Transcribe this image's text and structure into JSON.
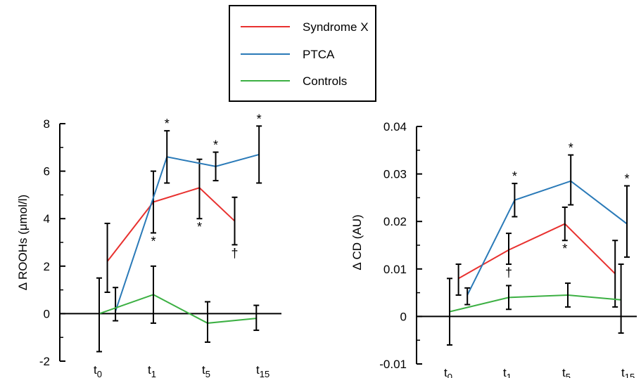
{
  "colors": {
    "syndrome_x": "#e8312f",
    "ptca": "#2a7ab8",
    "controls": "#3cb043",
    "axis": "#000000"
  },
  "legend": {
    "placement": "top-center",
    "entries": [
      {
        "label": "Syndrome X",
        "color_key": "syndrome_x"
      },
      {
        "label": "PTCA",
        "color_key": "ptca"
      },
      {
        "label": "Controls",
        "color_key": "controls"
      }
    ]
  },
  "chart_data": [
    {
      "type": "line",
      "ylabel": "Δ ROOHs (μmol/l)",
      "xlabel": "",
      "categories": [
        {
          "base": "t",
          "sub": "0"
        },
        {
          "base": "t",
          "sub": "1"
        },
        {
          "base": "t",
          "sub": "5"
        },
        {
          "base": "t",
          "sub": "15"
        }
      ],
      "ylim": [
        -2,
        8
      ],
      "yticks": [
        -2,
        0,
        2,
        4,
        6,
        8
      ],
      "ytick_labels": [
        "-2",
        "0",
        "2",
        "4",
        "6",
        "8"
      ],
      "grid": false,
      "series": [
        {
          "name": "Syndrome X",
          "color_key": "syndrome_x",
          "x": [
            0.15,
            1.0,
            1.85,
            2.5
          ],
          "values": [
            2.2,
            4.7,
            5.3,
            3.9
          ],
          "err": [
            [
              0.9,
              3.8
            ],
            [
              3.4,
              6.0
            ],
            [
              4.0,
              6.5
            ],
            [
              2.9,
              4.9
            ]
          ],
          "markers": [
            "",
            "*",
            "*",
            "†"
          ],
          "marker_pos": [
            "",
            "below",
            "below",
            "below"
          ]
        },
        {
          "name": "PTCA",
          "color_key": "ptca",
          "x": [
            0.3,
            1.25,
            2.15,
            2.95
          ],
          "values": [
            0.1,
            6.6,
            6.2,
            6.7
          ],
          "err": [
            [
              -0.3,
              1.1
            ],
            [
              5.5,
              7.7
            ],
            [
              5.6,
              6.8
            ],
            [
              5.5,
              7.9
            ]
          ],
          "markers": [
            "",
            "*",
            "*",
            "*"
          ],
          "marker_pos": [
            "",
            "above",
            "above",
            "above"
          ]
        },
        {
          "name": "Controls",
          "color_key": "controls",
          "x": [
            0.0,
            1.0,
            2.0,
            2.9
          ],
          "values": [
            0.0,
            0.8,
            -0.4,
            -0.2
          ],
          "err": [
            [
              -1.6,
              1.5
            ],
            [
              -0.4,
              2.0
            ],
            [
              -1.2,
              0.5
            ],
            [
              -0.7,
              0.35
            ]
          ],
          "markers": [
            "",
            "",
            "",
            ""
          ],
          "marker_pos": [
            "",
            "",
            "",
            ""
          ]
        }
      ]
    },
    {
      "type": "line",
      "ylabel": "Δ CD (AU)",
      "xlabel": "",
      "categories": [
        {
          "base": "t",
          "sub": "0"
        },
        {
          "base": "t",
          "sub": "1"
        },
        {
          "base": "t",
          "sub": "5"
        },
        {
          "base": "t",
          "sub": "15"
        }
      ],
      "ylim": [
        -0.01,
        0.04
      ],
      "yticks": [
        -0.01,
        0,
        0.01,
        0.02,
        0.03,
        0.04
      ],
      "ytick_labels": [
        "-0.01",
        "0",
        "0.01",
        "0.02",
        "0.03",
        "0.04"
      ],
      "grid": false,
      "series": [
        {
          "name": "Syndrome X",
          "color_key": "syndrome_x",
          "x": [
            0.15,
            1.0,
            1.95,
            2.8
          ],
          "values": [
            0.008,
            0.014,
            0.0195,
            0.009
          ],
          "err": [
            [
              0.0045,
              0.011
            ],
            [
              0.011,
              0.0175
            ],
            [
              0.016,
              0.023
            ],
            [
              0.002,
              0.016
            ]
          ],
          "markers": [
            "",
            "†",
            "*",
            ""
          ],
          "marker_pos": [
            "",
            "below",
            "below",
            ""
          ]
        },
        {
          "name": "PTCA",
          "color_key": "ptca",
          "x": [
            0.3,
            1.1,
            2.05,
            3.0
          ],
          "values": [
            0.0045,
            0.0245,
            0.0285,
            0.0195
          ],
          "err": [
            [
              0.0025,
              0.006
            ],
            [
              0.021,
              0.028
            ],
            [
              0.0235,
              0.034
            ],
            [
              0.0125,
              0.0275
            ]
          ],
          "markers": [
            "",
            "*",
            "*",
            "*"
          ],
          "marker_pos": [
            "",
            "above",
            "above",
            "above"
          ]
        },
        {
          "name": "Controls",
          "color_key": "controls",
          "x": [
            0.0,
            1.0,
            2.0,
            2.9
          ],
          "values": [
            0.001,
            0.004,
            0.0045,
            0.0035
          ],
          "err": [
            [
              -0.006,
              0.008
            ],
            [
              0.0015,
              0.0065
            ],
            [
              0.002,
              0.007
            ],
            [
              -0.0035,
              0.011
            ]
          ],
          "markers": [
            "",
            "",
            "",
            ""
          ],
          "marker_pos": [
            "",
            "",
            "",
            ""
          ]
        }
      ]
    }
  ]
}
